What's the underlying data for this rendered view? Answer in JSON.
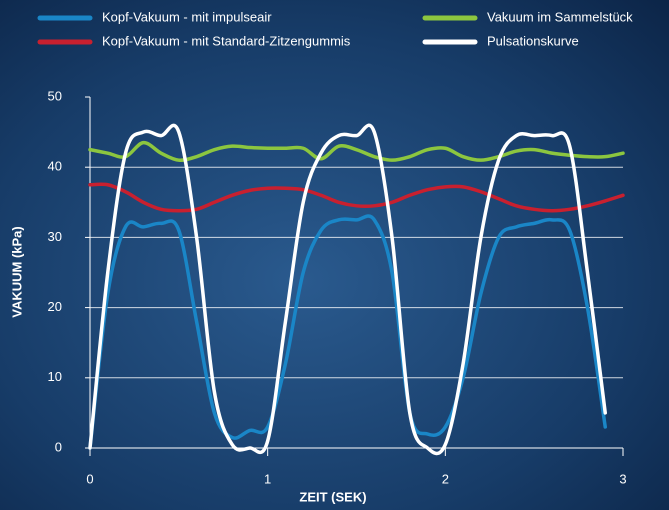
{
  "chart_data": {
    "type": "line",
    "xlabel": "ZEIT (SEK)",
    "ylabel": "VAKUUM (kPa)",
    "x": [
      0,
      0.1,
      0.2,
      0.3,
      0.4,
      0.5,
      0.6,
      0.7,
      0.8,
      0.9,
      1.0,
      1.1,
      1.2,
      1.3,
      1.4,
      1.5,
      1.6,
      1.7,
      1.8,
      1.9,
      2.0,
      2.1,
      2.2,
      2.3,
      2.4,
      2.5,
      2.6,
      2.7,
      2.8,
      2.9,
      3.0
    ],
    "series": [
      {
        "name": "Kopf-Vakuum - mit impulseair",
        "color": "#1a86c7",
        "values": [
          0,
          22,
          31.5,
          31.5,
          32,
          31,
          18,
          5,
          1.5,
          2.5,
          3,
          12,
          25,
          31,
          32.5,
          32.5,
          32.5,
          25,
          5,
          2,
          3,
          10,
          22,
          30,
          31.5,
          32,
          32.5,
          31,
          20,
          3,
          null
        ]
      },
      {
        "name": "Kopf-Vakuum - mit Standard-Zitzengummis",
        "color": "#c8202f",
        "values": [
          37.5,
          37.5,
          36.5,
          35,
          34,
          33.8,
          34,
          35,
          36,
          36.7,
          37,
          37,
          36.8,
          36,
          35,
          34.5,
          34.5,
          35,
          36,
          36.8,
          37.2,
          37.2,
          36.5,
          35.5,
          34.5,
          34,
          33.8,
          34,
          34.5,
          35.2,
          36
        ]
      },
      {
        "name": "Vakuum im Sammelstück",
        "color": "#8cc63f",
        "values": [
          42.5,
          42,
          41.5,
          43.5,
          42,
          41,
          41.5,
          42.5,
          43,
          42.8,
          42.7,
          42.7,
          42.7,
          41.2,
          43,
          42.5,
          41.5,
          41,
          41.5,
          42.5,
          42.7,
          41.5,
          41,
          41.5,
          42.3,
          42.5,
          42,
          41.7,
          41.5,
          41.5,
          42
        ]
      },
      {
        "name": "Pulsationskurve",
        "color": "#ffffff",
        "values": [
          0,
          25,
          42,
          45,
          44.5,
          45,
          30,
          8,
          0.5,
          0,
          1,
          18,
          35,
          42,
          44.5,
          44.5,
          45,
          30,
          5,
          0,
          0.5,
          12,
          30,
          41,
          44.5,
          44.5,
          44.5,
          43,
          25,
          5,
          null
        ]
      }
    ],
    "xlim": [
      0,
      3
    ],
    "xticks": [
      0,
      1,
      2,
      3
    ],
    "ylim": [
      0,
      50
    ],
    "yticks": [
      0,
      10,
      20,
      30,
      40,
      50
    ],
    "grid": true,
    "legend": "top"
  }
}
